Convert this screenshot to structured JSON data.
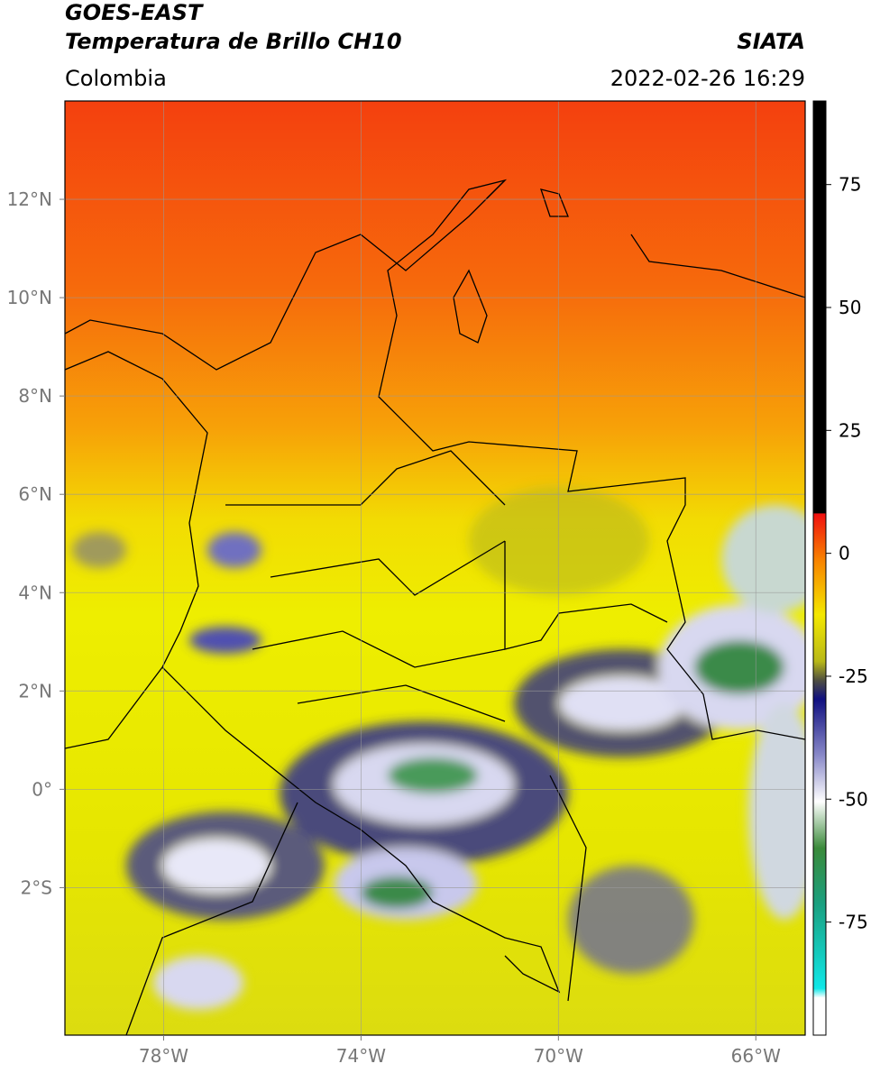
{
  "header": {
    "title": "GOES-EAST",
    "subtitle": "Temperatura de Brillo CH10",
    "region": "Colombia",
    "source": "SIATA",
    "datetime": "2022-02-26 16:29"
  },
  "map": {
    "xlim": [
      -80,
      -65
    ],
    "ylim": [
      -5,
      14
    ],
    "xticks": [
      {
        "value": -78,
        "label": "78°W"
      },
      {
        "value": -74,
        "label": "74°W"
      },
      {
        "value": -70,
        "label": "70°W"
      },
      {
        "value": -66,
        "label": "66°W"
      }
    ],
    "yticks": [
      {
        "value": 12,
        "label": "12°N"
      },
      {
        "value": 10,
        "label": "10°N"
      },
      {
        "value": 8,
        "label": "8°N"
      },
      {
        "value": 6,
        "label": "6°N"
      },
      {
        "value": 4,
        "label": "4°N"
      },
      {
        "value": 2,
        "label": "2°N"
      },
      {
        "value": 0,
        "label": "0°"
      },
      {
        "value": -2,
        "label": "2°S"
      }
    ],
    "grid": true
  },
  "colorbar": {
    "lim": [
      -98,
      92
    ],
    "ticks": [
      75,
      50,
      25,
      0,
      -25,
      -50,
      -75
    ]
  }
}
